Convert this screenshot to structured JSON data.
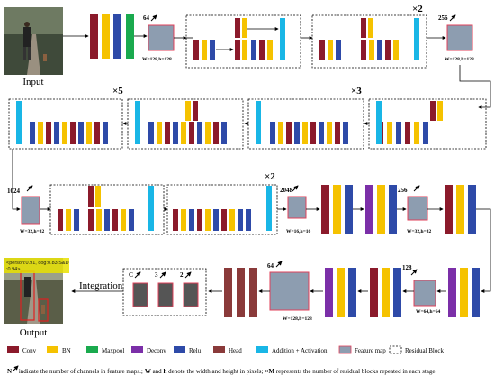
{
  "labels": {
    "input": "Input",
    "output": "Output",
    "integration": "Integration",
    "detection_text_line1": "<person:0.91, dog:0.83,S&D",
    "detection_text_line2": ":0.94>"
  },
  "channel_labels": {
    "c64_top": "64",
    "c256_top": "256",
    "c1024": "1024",
    "c2048": "2048",
    "c256_mid": "256",
    "c128": "128",
    "c64_bottom": "64",
    "head_c": "C",
    "head_3": "3",
    "head_2": "2"
  },
  "size_labels": {
    "s128_top": "W=128,h=128",
    "s128_right": "W=128,h=128",
    "s32_left": "W=32,h=32",
    "s16": "W=16,h=16",
    "s32_mid": "W=32,h=32",
    "s64": "W=64,h=64",
    "s128_bottom": "W=128,h=128"
  },
  "repeat_labels": {
    "r2_top": "×2",
    "r3": "×3",
    "r5": "×5",
    "r2_mid": "×2"
  },
  "legend": [
    {
      "key": "conv",
      "label": "Conv",
      "color": "#8b1a2b"
    },
    {
      "key": "bn",
      "label": "BN",
      "color": "#f5c200"
    },
    {
      "key": "maxpool",
      "label": "Maxpool",
      "color": "#1aaa4e"
    },
    {
      "key": "deconv",
      "label": "Deconv",
      "color": "#7b2fa8"
    },
    {
      "key": "relu",
      "label": "Relu",
      "color": "#2e4aa8"
    },
    {
      "key": "head",
      "label": "Head",
      "color": "#8a3a3a"
    },
    {
      "key": "add",
      "label": "Addition + Activation",
      "color": "#19b6e6"
    },
    {
      "key": "fmap",
      "label": "Feature map",
      "color": "#8d9db0"
    },
    {
      "key": "resblock",
      "label": "Residual Block",
      "color": "#ffffff"
    }
  ],
  "footnote": {
    "n_part": "N",
    "n_desc": " indicate the number of channels in feature maps.;",
    "w_part": "W",
    "and_part": " and ",
    "h_part": "h",
    "wh_desc": " denote the width and height in pixels;",
    "xm_part": "×M",
    "xm_desc": " represents the number of residual blocks repeated in each stage."
  },
  "colors": {
    "conv": "#8b1a2b",
    "bn": "#f5c200",
    "maxpool": "#1aaa4e",
    "deconv": "#7b2fa8",
    "relu": "#2e4aa8",
    "head": "#8a3a3a",
    "add": "#19b6e6",
    "fmap": "#8d9db0",
    "fmap_border": "#e0405a",
    "head_map": "#555555"
  }
}
